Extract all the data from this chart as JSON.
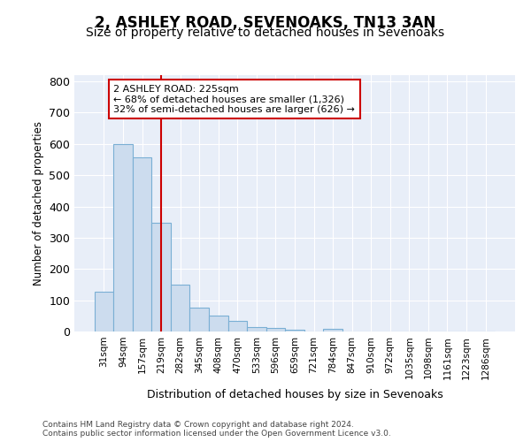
{
  "title1": "2, ASHLEY ROAD, SEVENOAKS, TN13 3AN",
  "title2": "Size of property relative to detached houses in Sevenoaks",
  "xlabel": "Distribution of detached houses by size in Sevenoaks",
  "ylabel": "Number of detached properties",
  "bar_labels": [
    "31sqm",
    "94sqm",
    "157sqm",
    "219sqm",
    "282sqm",
    "345sqm",
    "408sqm",
    "470sqm",
    "533sqm",
    "596sqm",
    "659sqm",
    "721sqm",
    "784sqm",
    "847sqm",
    "910sqm",
    "972sqm",
    "1035sqm",
    "1098sqm",
    "1161sqm",
    "1223sqm",
    "1286sqm"
  ],
  "bar_values": [
    128,
    600,
    558,
    348,
    150,
    75,
    52,
    35,
    15,
    12,
    5,
    0,
    8,
    0,
    0,
    0,
    0,
    0,
    0,
    0,
    0
  ],
  "bar_fill_color": "#ccdcee",
  "bar_edge_color": "#7aafd4",
  "vline_x": 3,
  "vline_color": "#cc0000",
  "annotation_text": "2 ASHLEY ROAD: 225sqm\n← 68% of detached houses are smaller (1,326)\n32% of semi-detached houses are larger (626) →",
  "annotation_box_facecolor": "white",
  "annotation_box_edgecolor": "#cc0000",
  "ylim": [
    0,
    820
  ],
  "yticks": [
    0,
    100,
    200,
    300,
    400,
    500,
    600,
    700,
    800
  ],
  "footer": "Contains HM Land Registry data © Crown copyright and database right 2024.\nContains public sector information licensed under the Open Government Licence v3.0.",
  "bg_color": "#e8eef8",
  "fig_bg_color": "white",
  "grid_color": "white",
  "title1_fontsize": 12,
  "title2_fontsize": 10
}
